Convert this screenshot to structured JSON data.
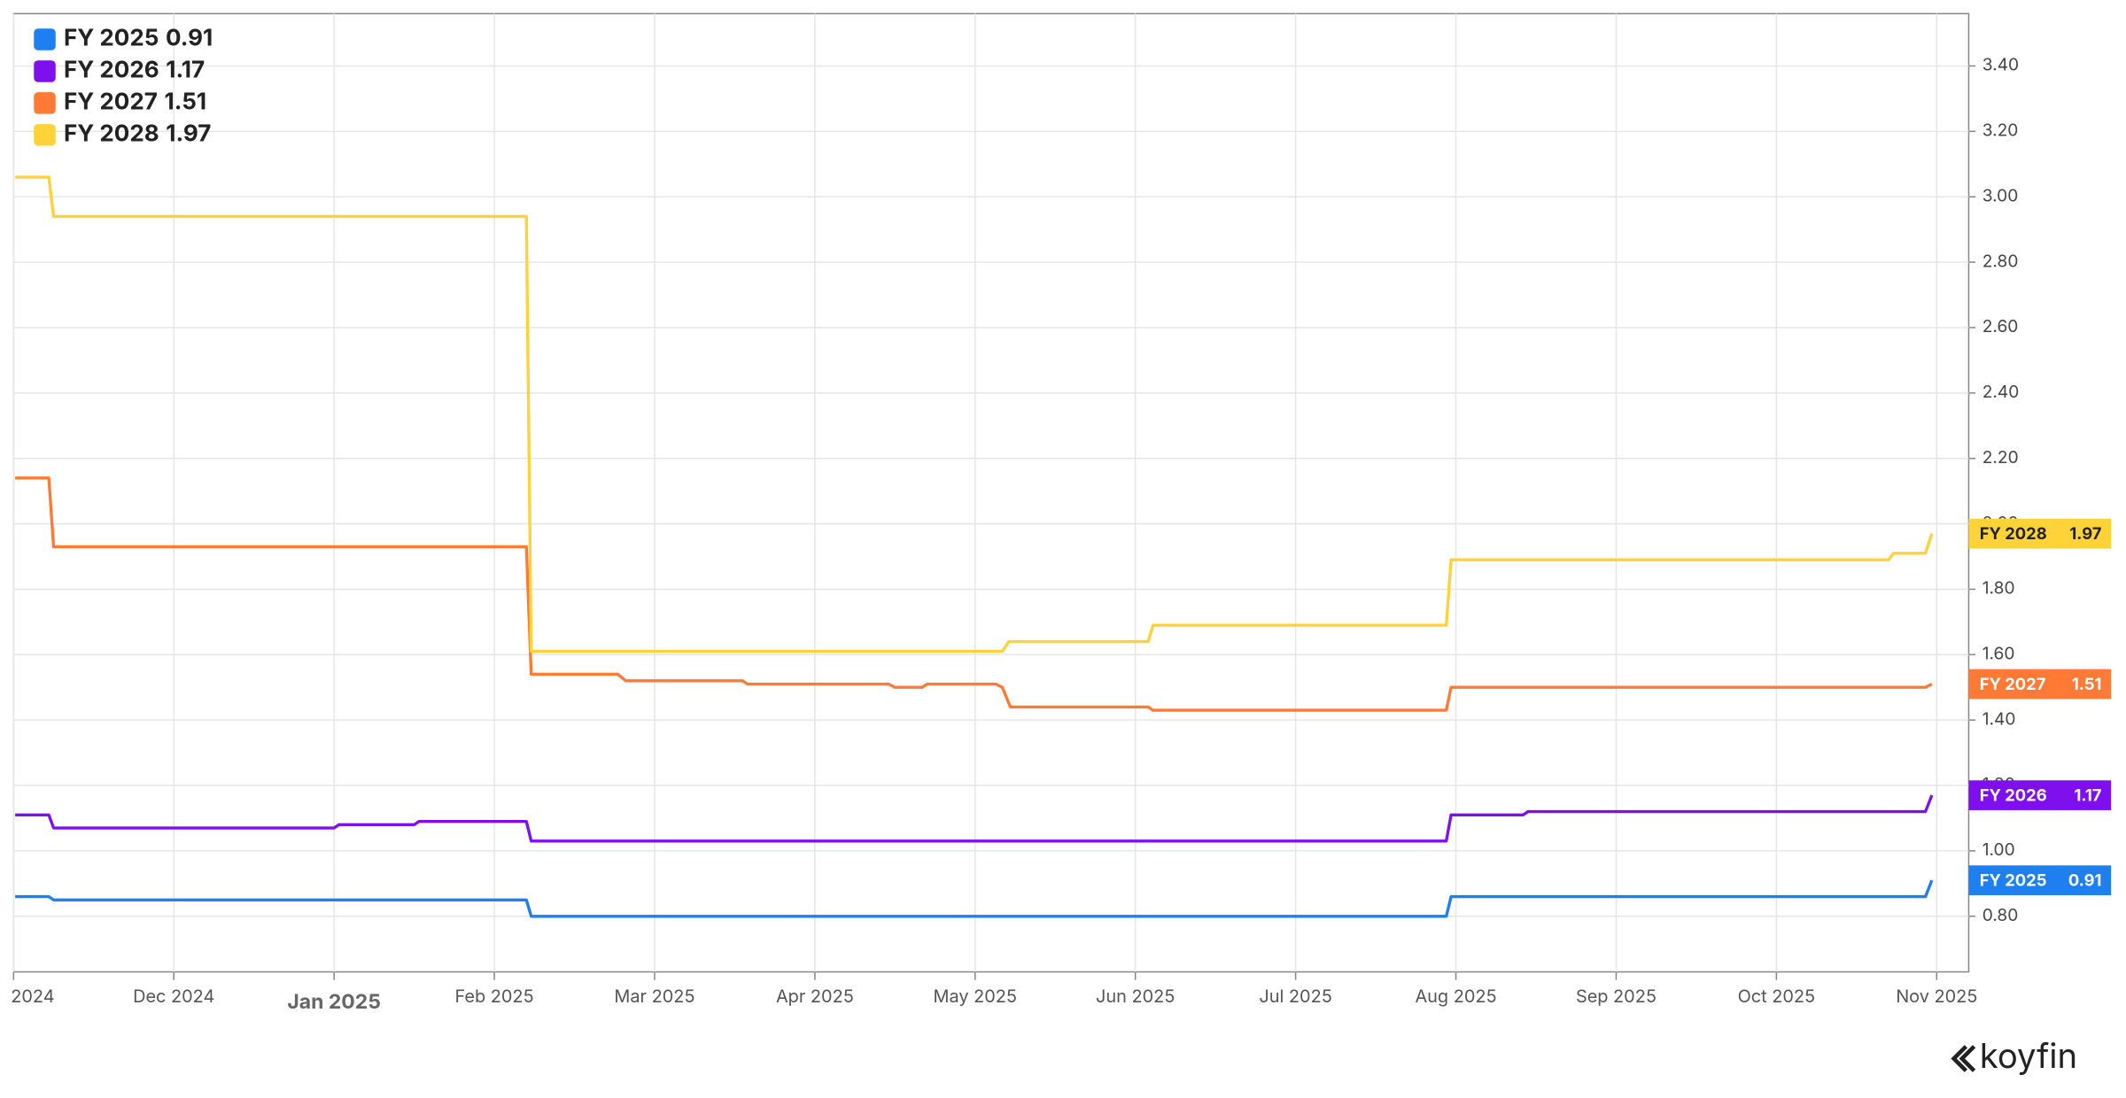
{
  "chart_data": {
    "type": "line",
    "step": true,
    "xlim": [
      11.0,
      23.2
    ],
    "xticks": [
      {
        "value": 11,
        "label": "2024"
      },
      {
        "value": 12,
        "label": "Dec 2024"
      },
      {
        "value": 13,
        "label": "Jan 2025"
      },
      {
        "value": 14,
        "label": "Feb 2025"
      },
      {
        "value": 15,
        "label": "Mar 2025"
      },
      {
        "value": 16,
        "label": "Apr 2025"
      },
      {
        "value": 17,
        "label": "May 2025"
      },
      {
        "value": 18,
        "label": "Jun 2025"
      },
      {
        "value": 19,
        "label": "Jul 2025"
      },
      {
        "value": 20,
        "label": "Aug 2025"
      },
      {
        "value": 21,
        "label": "Sep 2025"
      },
      {
        "value": 22,
        "label": "Oct 2025"
      },
      {
        "value": 23,
        "label": "Nov 2025"
      }
    ],
    "ylim": [
      0.63,
      3.56
    ],
    "yticks": [
      {
        "value": 0.8,
        "label": "0.80"
      },
      {
        "value": 1.0,
        "label": "1.00"
      },
      {
        "value": 1.2,
        "label": "1.20"
      },
      {
        "value": 1.4,
        "label": "1.40"
      },
      {
        "value": 1.6,
        "label": "1.60"
      },
      {
        "value": 1.8,
        "label": "1.80"
      },
      {
        "value": 2.0,
        "label": "2.00"
      },
      {
        "value": 2.2,
        "label": "2.20"
      },
      {
        "value": 2.4,
        "label": "2.40"
      },
      {
        "value": 2.6,
        "label": "2.60"
      },
      {
        "value": 2.8,
        "label": "2.80"
      },
      {
        "value": 3.0,
        "label": "3.00"
      },
      {
        "value": 3.2,
        "label": "3.20"
      },
      {
        "value": 3.4,
        "label": "3.40"
      }
    ],
    "grid": true,
    "legend": "top-left",
    "series": [
      {
        "name": "FY 2025",
        "color": "#1e80f0",
        "x": [
          11.01,
          11.22,
          11.25,
          14.2,
          14.23,
          19.94,
          19.97,
          22.93,
          22.97
        ],
        "values": [
          0.86,
          0.86,
          0.85,
          0.85,
          0.8,
          0.8,
          0.86,
          0.86,
          0.91
        ]
      },
      {
        "name": "FY 2026",
        "color": "#7f10ee",
        "x": [
          11.01,
          11.22,
          11.25,
          12.62,
          12.65,
          13.0,
          13.03,
          13.5,
          13.53,
          14.2,
          14.23,
          19.94,
          19.97,
          20.42,
          20.45,
          22.93,
          22.97
        ],
        "values": [
          1.11,
          1.11,
          1.07,
          1.07,
          1.07,
          1.07,
          1.08,
          1.08,
          1.09,
          1.09,
          1.03,
          1.03,
          1.11,
          1.11,
          1.12,
          1.12,
          1.17
        ]
      },
      {
        "name": "FY 2027",
        "color": "#ff7a35",
        "x": [
          11.01,
          11.22,
          11.25,
          14.2,
          14.23,
          14.77,
          14.82,
          15.55,
          15.58,
          16.46,
          16.5,
          16.67,
          16.7,
          17.13,
          17.17,
          17.22,
          18.08,
          18.11,
          19.94,
          19.97,
          22.93,
          22.97
        ],
        "values": [
          2.14,
          2.14,
          1.93,
          1.93,
          1.54,
          1.54,
          1.52,
          1.52,
          1.51,
          1.51,
          1.5,
          1.5,
          1.51,
          1.51,
          1.5,
          1.44,
          1.44,
          1.43,
          1.43,
          1.5,
          1.5,
          1.51
        ]
      },
      {
        "name": "FY 2028",
        "color": "#ffd23a",
        "x": [
          11.01,
          11.22,
          11.25,
          14.2,
          14.23,
          17.17,
          17.21,
          18.08,
          18.11,
          19.94,
          19.97,
          22.7,
          22.73,
          22.93,
          22.97
        ],
        "values": [
          3.06,
          3.06,
          2.94,
          2.94,
          1.61,
          1.61,
          1.64,
          1.64,
          1.69,
          1.69,
          1.89,
          1.89,
          1.91,
          1.91,
          1.97
        ]
      }
    ],
    "watermark": "koyfin"
  }
}
